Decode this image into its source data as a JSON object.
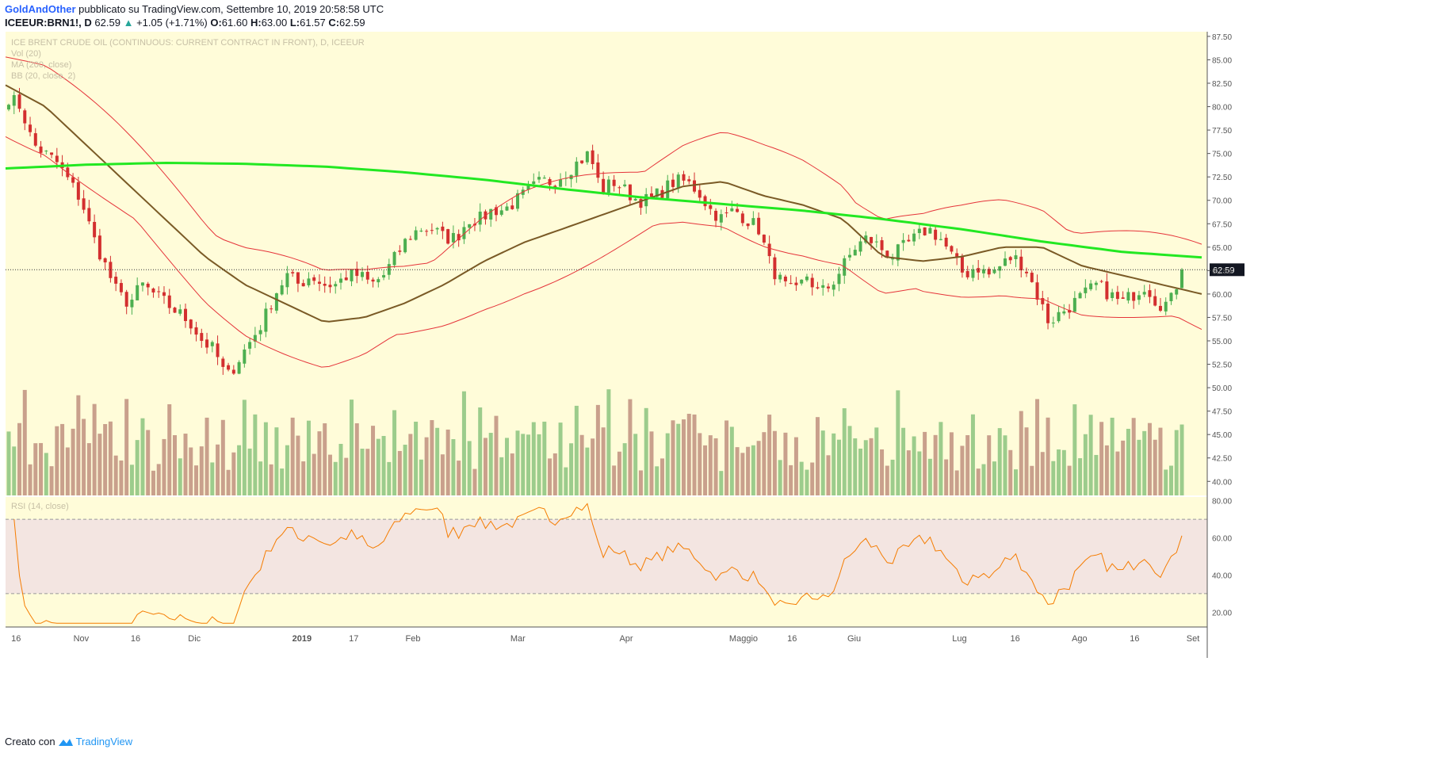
{
  "header": {
    "author": "GoldAndOther",
    "published": "pubblicato su TradingView.com, Settembre 10, 2019 20:58:58 UTC",
    "symbol": "ICEEUR:BRN1!, D",
    "last": "62.59",
    "change": "+1.05 (+1.71%)",
    "o_label": "O:",
    "o": "61.60",
    "h_label": "H:",
    "h": "63.00",
    "l_label": "L:",
    "l": "61.57",
    "c_label": "C:",
    "c": "62.59"
  },
  "legend": {
    "title": "ICE BRENT CRUDE OIL (CONTINUOUS: CURRENT CONTRACT IN FRONT), D, ICEEUR",
    "vol": "Vol (20)",
    "ma": "MA (200, close)",
    "bb": "BB (20, close, 2)",
    "rsi": "RSI (14, close)"
  },
  "colors": {
    "background": "#fffcd9",
    "up": "#4caf50",
    "down": "#d32f2f",
    "ma200": "#22e822",
    "basis": "#7a5a26",
    "bands": "#e5343a",
    "rsi": "#f57c00",
    "rsi_band": "#f3e5e1",
    "vol_up": "#9ccc8c",
    "vol_down": "#c9a08c"
  },
  "chart_data": {
    "type": "candlestick",
    "price_axis": [
      "87.50",
      "85.00",
      "82.50",
      "80.00",
      "77.50",
      "75.00",
      "72.50",
      "70.00",
      "67.50",
      "65.00",
      "62.50",
      "60.00",
      "57.50",
      "55.00",
      "52.50",
      "50.00",
      "47.50",
      "45.00",
      "42.50",
      "40.00"
    ],
    "price_range": [
      38.5,
      88.0
    ],
    "volume_axis": [
      "47.50",
      "45.00",
      "42.50",
      "40.00"
    ],
    "rsi_axis": [
      "80.00",
      "60.00",
      "40.00",
      "20.00"
    ],
    "rsi_range": [
      12,
      82
    ],
    "rsi_levels": [
      70,
      30
    ],
    "x_labels": [
      "16",
      "Nov",
      "16",
      "Dic",
      "2019",
      "17",
      "Feb",
      "Mar",
      "Apr",
      "Maggio",
      "16",
      "Giu",
      "Lug",
      "16",
      "Ago",
      "16",
      "Set"
    ],
    "last_price": "62.59",
    "close_waypoints": [
      81,
      80,
      76,
      75,
      74,
      72,
      70,
      66,
      63,
      60,
      59,
      61,
      60,
      59,
      58,
      57,
      55,
      54,
      51,
      53,
      55,
      57,
      60,
      62,
      61,
      62,
      61,
      61,
      62,
      62,
      61,
      62,
      64,
      66,
      67,
      67,
      66,
      66,
      68,
      68,
      69,
      69,
      70,
      71,
      72,
      72,
      73,
      74,
      75,
      71,
      72,
      71,
      70,
      70,
      71,
      72,
      72,
      71,
      69,
      68,
      69,
      68,
      67,
      63,
      61,
      60,
      62,
      60,
      61,
      63,
      65,
      66,
      65,
      64,
      65,
      66,
      67,
      66,
      64,
      62,
      63,
      62,
      63,
      64,
      63,
      60,
      57,
      58,
      59,
      60,
      61,
      60,
      59,
      60,
      61,
      59,
      59,
      62.59
    ],
    "ma200_waypoints": [
      73.4,
      73.8,
      74.0,
      73.9,
      73.6,
      73.0,
      72.2,
      71.2,
      70.3,
      69.6,
      68.9,
      68.0,
      66.9,
      65.6,
      64.5,
      63.9
    ],
    "basis_waypoints": [
      82.3,
      80,
      76,
      72,
      68,
      64,
      61,
      59,
      57,
      57.5,
      59,
      61,
      63.5,
      65.5,
      67,
      68.5,
      70,
      71.5,
      72,
      70.5,
      69.5,
      68,
      64,
      63.5,
      64,
      65,
      65,
      63,
      62,
      61,
      60
    ]
  }
}
